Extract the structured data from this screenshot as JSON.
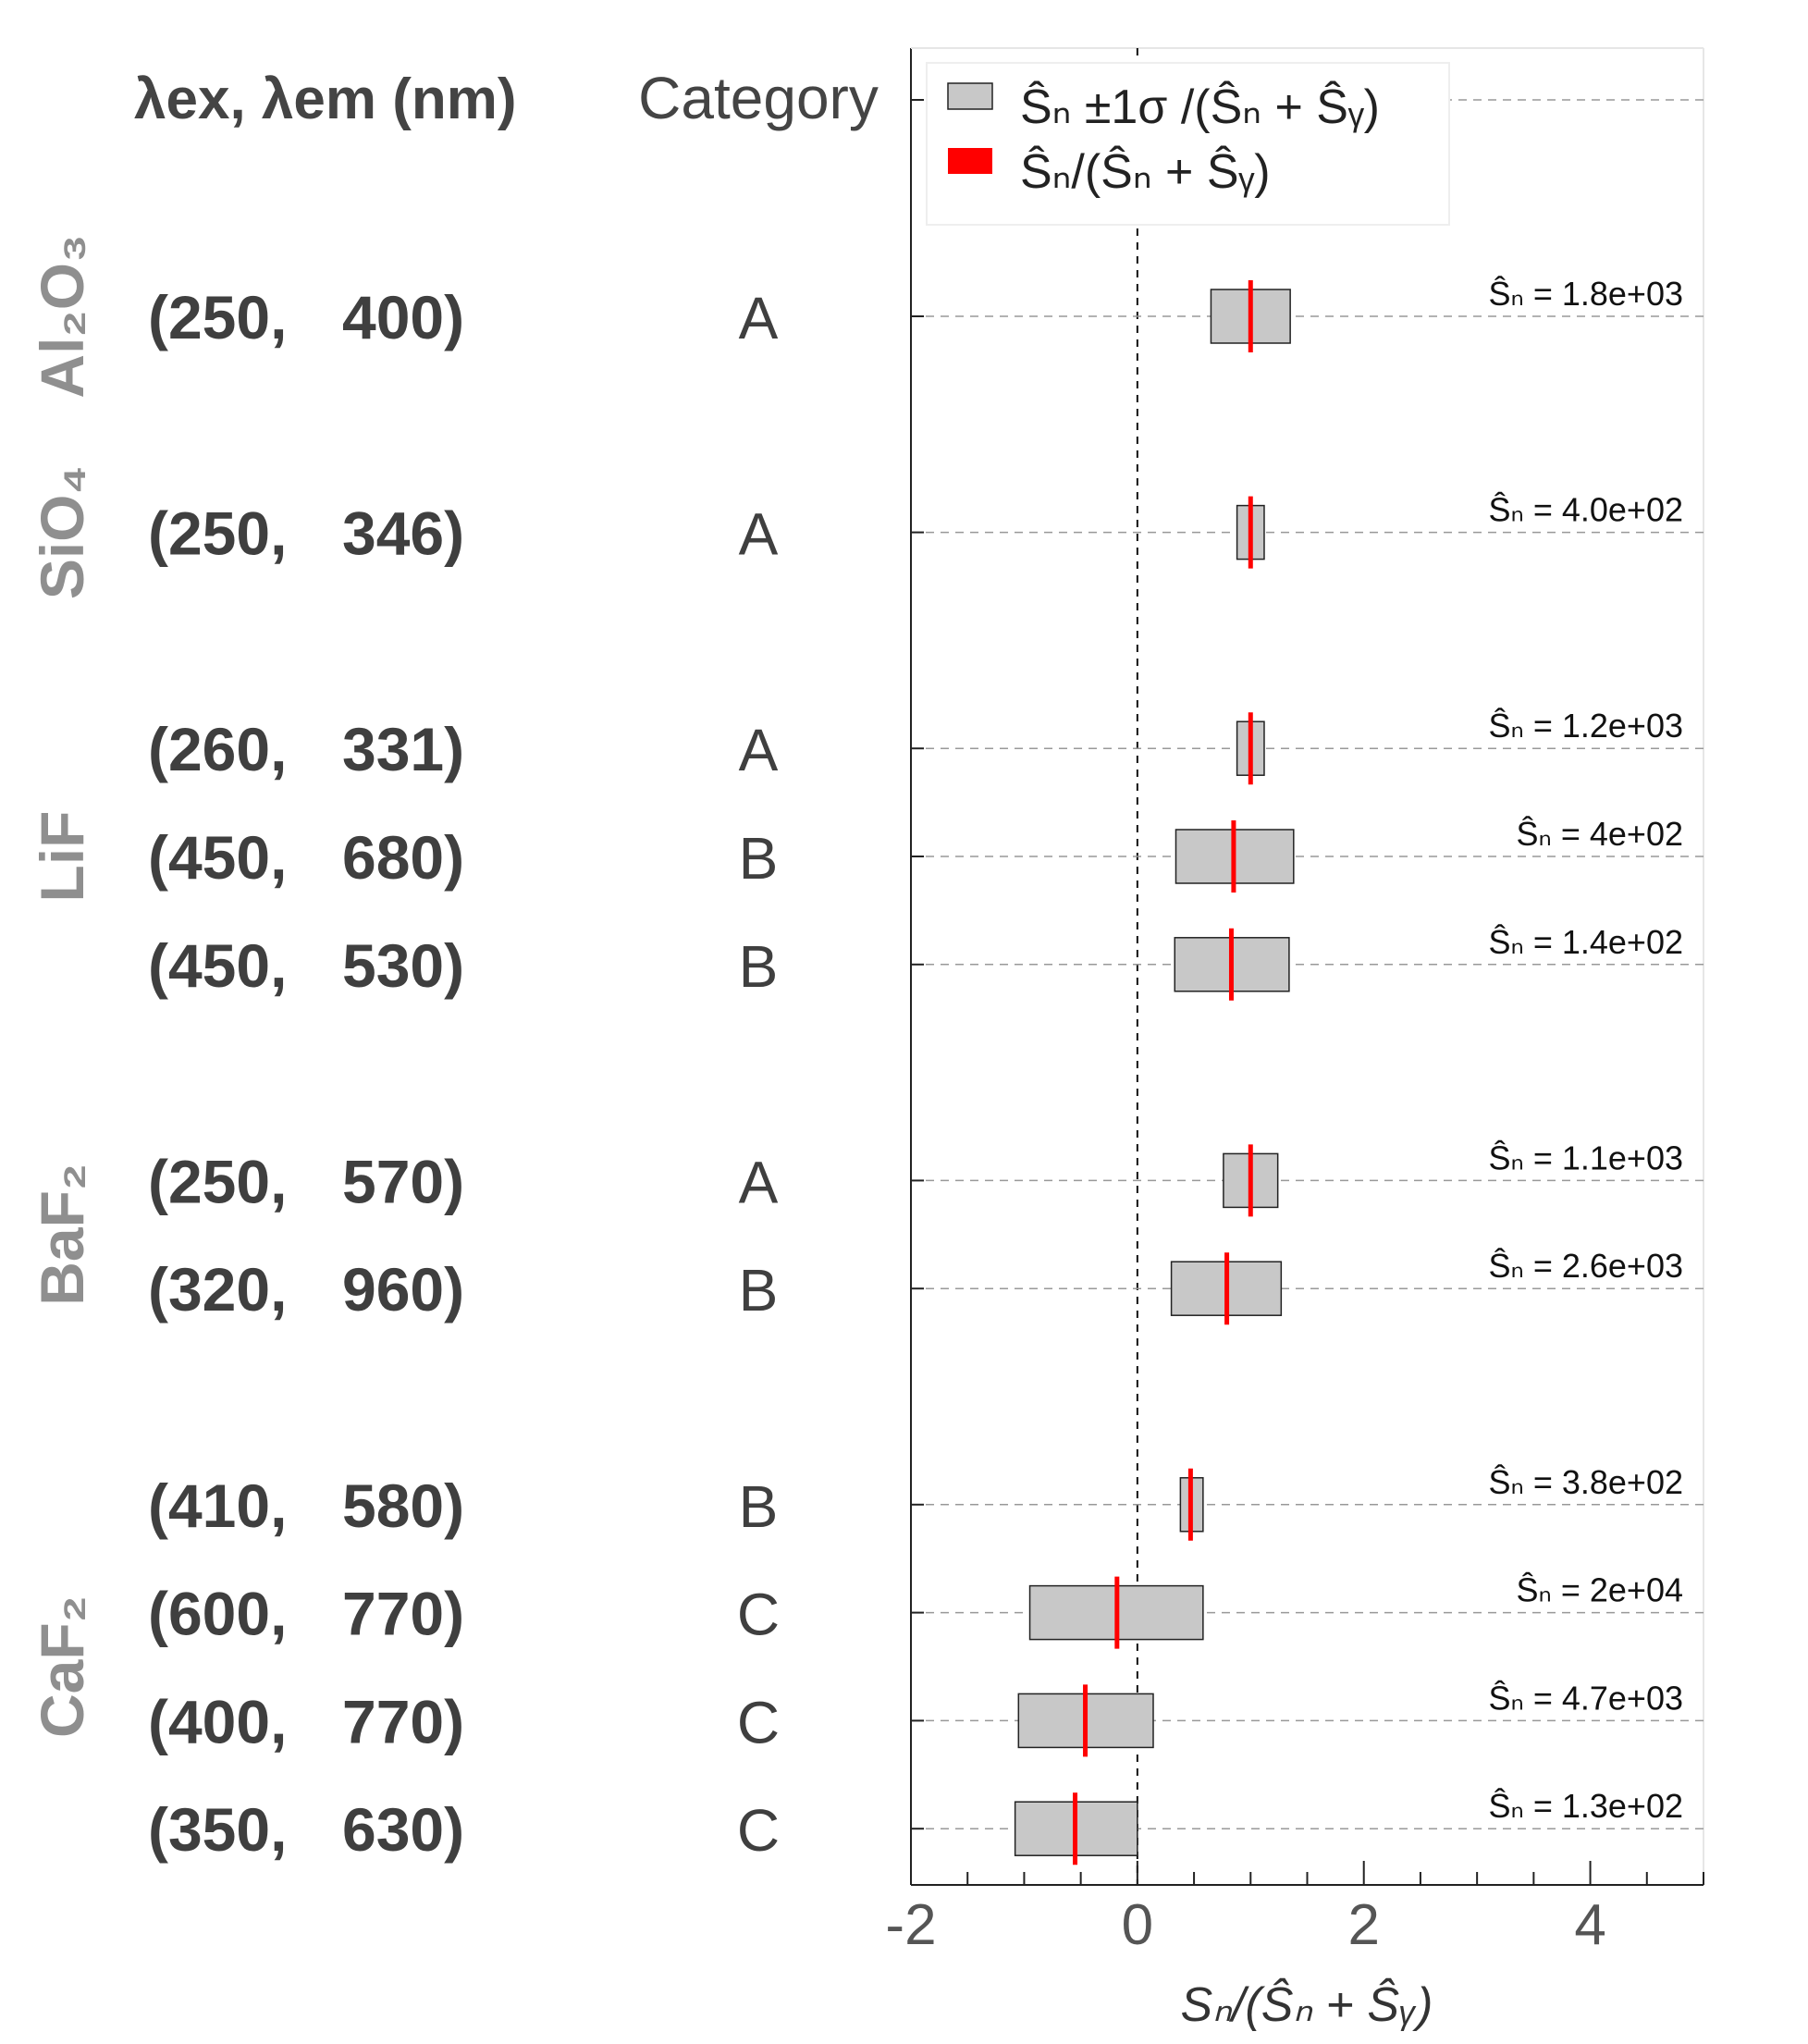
{
  "chart_data": {
    "type": "bar",
    "x_axis": {
      "label": "Sₙ/(Ŝₙ + Ŝᵧ)",
      "xlim": [
        -2,
        5
      ],
      "ticks": [
        -2,
        0,
        2,
        4
      ],
      "tick_labels": [
        "-2",
        "0",
        "2",
        "4"
      ],
      "minor_step": 0.5
    },
    "reference_line_x": 0,
    "grid": "horizontal dashed lines at each row",
    "legend": {
      "placement": "top-left",
      "entries": [
        {
          "label": "Ŝₙ ±1σ /(Ŝₙ + Ŝᵧ)",
          "color": "#c8c8c8"
        },
        {
          "label": "Ŝₙ/(Ŝₙ + Ŝᵧ)",
          "color": "#ff0000"
        }
      ]
    },
    "headers": {
      "wavelength": "λex, λem (nm)",
      "category": "Category"
    },
    "groups": [
      {
        "name": "Al₂O₃",
        "rows": [
          0
        ]
      },
      {
        "name": "SiO₄",
        "rows": [
          1
        ]
      },
      {
        "name": "LiF",
        "rows": [
          2,
          3,
          4
        ]
      },
      {
        "name": "BaF₂",
        "rows": [
          5,
          6
        ]
      },
      {
        "name": "CaF₂",
        "rows": [
          7,
          8,
          9,
          10
        ]
      }
    ],
    "rows": [
      {
        "ex": "(250,",
        "em": "400)",
        "category": "A",
        "center": 1.0,
        "low": 0.65,
        "high": 1.35,
        "annotation": "Ŝₙ = 1.8e+03"
      },
      {
        "ex": "(250,",
        "em": "346)",
        "category": "A",
        "center": 1.0,
        "low": 0.88,
        "high": 1.12,
        "annotation": "Ŝₙ = 4.0e+02"
      },
      {
        "ex": "(260,",
        "em": "331)",
        "category": "A",
        "center": 1.0,
        "low": 0.88,
        "high": 1.12,
        "annotation": "Ŝₙ = 1.2e+03"
      },
      {
        "ex": "(450,",
        "em": "680)",
        "category": "B",
        "center": 0.85,
        "low": 0.34,
        "high": 1.38,
        "annotation": "Ŝₙ = 4e+02"
      },
      {
        "ex": "(450,",
        "em": "530)",
        "category": "B",
        "center": 0.83,
        "low": 0.33,
        "high": 1.34,
        "annotation": "Ŝₙ = 1.4e+02"
      },
      {
        "ex": "(250,",
        "em": "570)",
        "category": "A",
        "center": 1.0,
        "low": 0.76,
        "high": 1.24,
        "annotation": "Ŝₙ = 1.1e+03"
      },
      {
        "ex": "(320,",
        "em": "960)",
        "category": "B",
        "center": 0.79,
        "low": 0.3,
        "high": 1.27,
        "annotation": "Ŝₙ = 2.6e+03"
      },
      {
        "ex": "(410,",
        "em": "580)",
        "category": "B",
        "center": 0.47,
        "low": 0.38,
        "high": 0.58,
        "annotation": "Ŝₙ = 3.8e+02"
      },
      {
        "ex": "(600,",
        "em": "770)",
        "category": "C",
        "center": -0.18,
        "low": -0.95,
        "high": 0.58,
        "annotation": "Ŝₙ = 2e+04"
      },
      {
        "ex": "(400,",
        "em": "770)",
        "category": "C",
        "center": -0.46,
        "low": -1.05,
        "high": 0.14,
        "annotation": "Ŝₙ = 4.7e+03"
      },
      {
        "ex": "(350,",
        "em": "630)",
        "category": "C",
        "center": -0.55,
        "low": -1.08,
        "high": 0.0,
        "annotation": "Ŝₙ = 1.3e+02"
      }
    ]
  }
}
